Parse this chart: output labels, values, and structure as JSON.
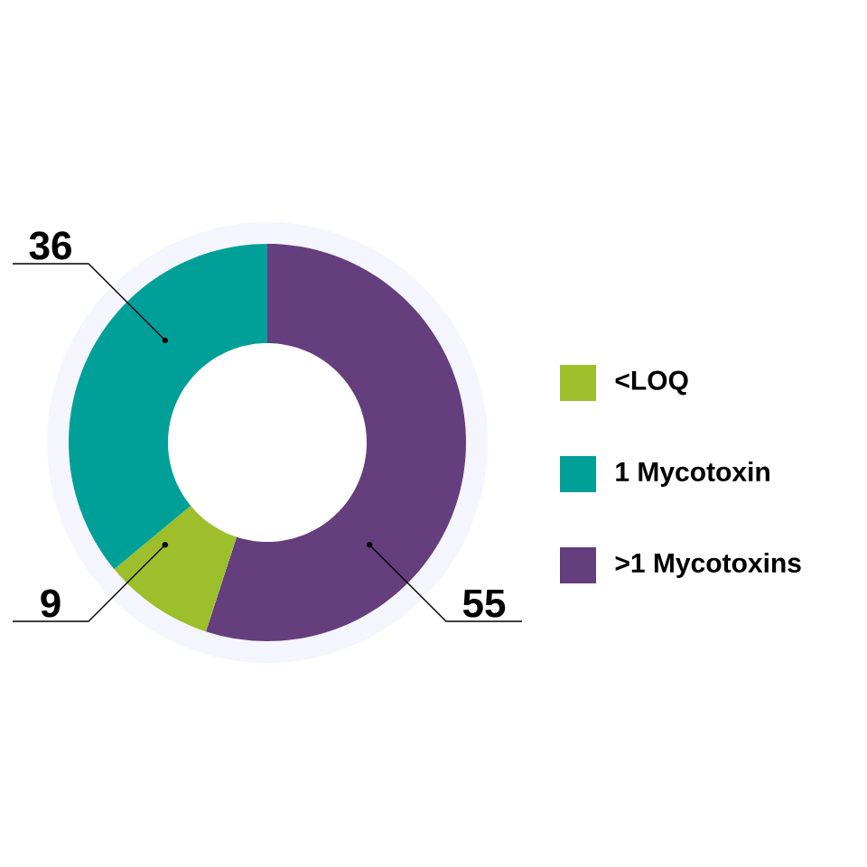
{
  "chart_data": {
    "type": "donut",
    "categories": [
      "<LOQ",
      "1 Mycotoxin",
      ">1 Mycotoxins"
    ],
    "values": [
      9,
      36,
      55
    ],
    "colors": [
      "#9cbf2b",
      "#00a099",
      "#653e7e"
    ],
    "data_labels": true,
    "legend": "right"
  }
}
